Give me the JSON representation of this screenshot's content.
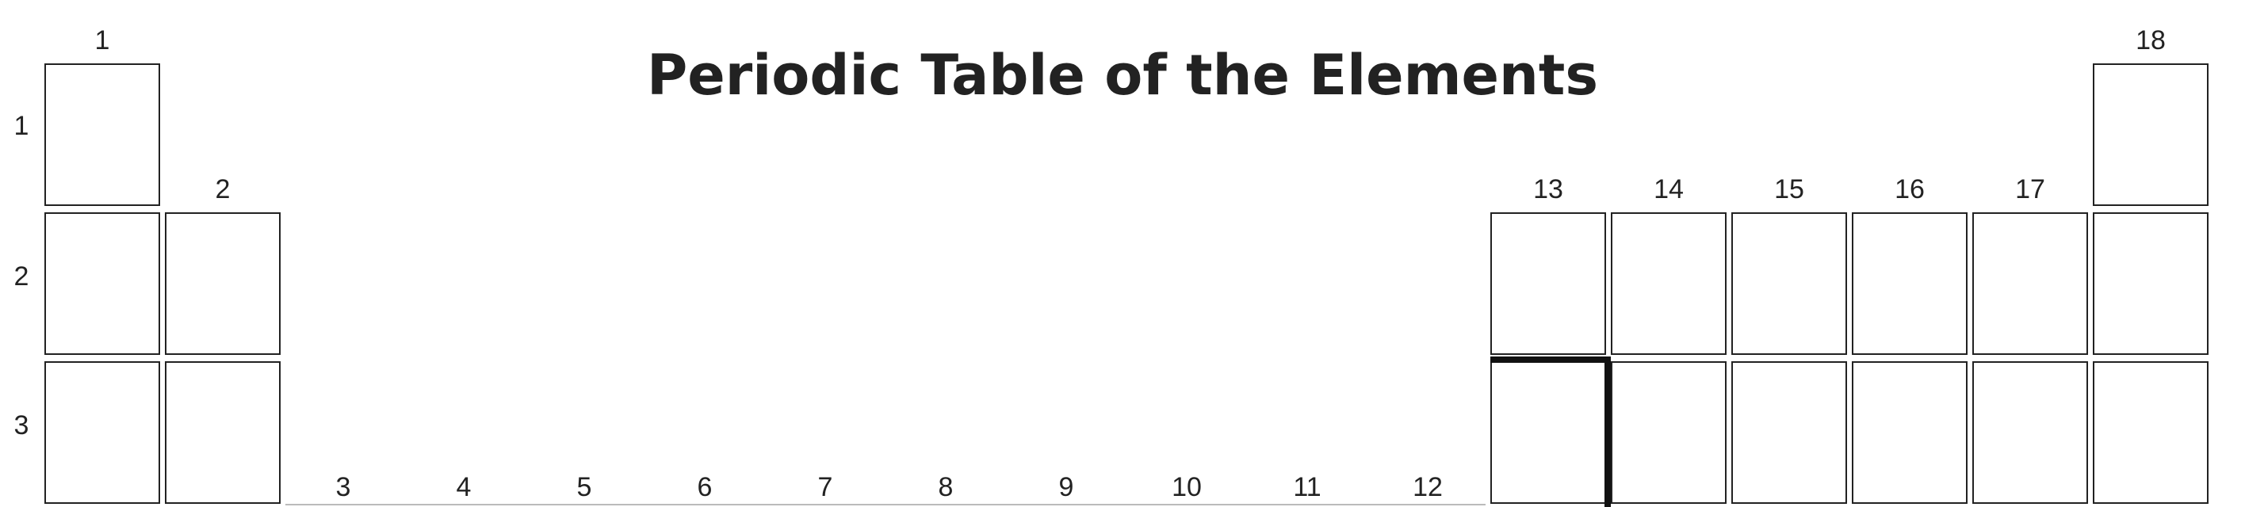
{
  "title": "Periodic Table of the Elements",
  "groups": [
    "1",
    "2",
    "3",
    "4",
    "5",
    "6",
    "7",
    "8",
    "9",
    "10",
    "11",
    "12",
    "13",
    "14",
    "15",
    "16",
    "17",
    "18"
  ],
  "periods": [
    "1",
    "2",
    "3"
  ]
}
